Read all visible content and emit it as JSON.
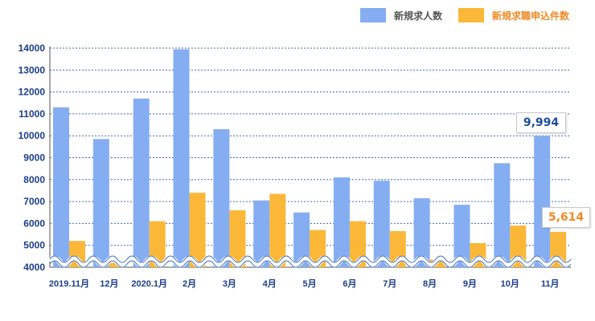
{
  "legend": {
    "series1": "新規求人数",
    "series2": "新規求職申込件数"
  },
  "callouts": {
    "job_value": "9,994",
    "applicant_value": "5,614"
  },
  "colors": {
    "job": "#85adf2",
    "applicant": "#fbb838",
    "axis_text": "#1a3d8a",
    "grid": "#3c6fb5",
    "callout_job": "#1f4e9c",
    "callout_applicant": "#f08a24"
  },
  "chart_data": {
    "type": "bar",
    "categories": [
      "2019.11月",
      "12月",
      "2020.1月",
      "2月",
      "3月",
      "4月",
      "5月",
      "6月",
      "7月",
      "8月",
      "9月",
      "10月",
      "11月"
    ],
    "series": [
      {
        "name": "新規求人数",
        "values": [
          11300,
          9850,
          11700,
          13950,
          10300,
          7050,
          6500,
          8100,
          7950,
          7150,
          6850,
          8750,
          9994
        ]
      },
      {
        "name": "新規求職申込件数",
        "values": [
          5200,
          4200,
          6100,
          7400,
          6600,
          7350,
          5700,
          6100,
          5650,
          4350,
          5100,
          5900,
          5614
        ]
      }
    ],
    "yticks": [
      "4000",
      "5000",
      "6000",
      "7000",
      "8000",
      "9000",
      "10000",
      "11000",
      "12000",
      "13000",
      "14000"
    ],
    "ylim": [
      4000,
      14000
    ],
    "grid": true,
    "axis_break": true,
    "legend_position": "top-right"
  }
}
